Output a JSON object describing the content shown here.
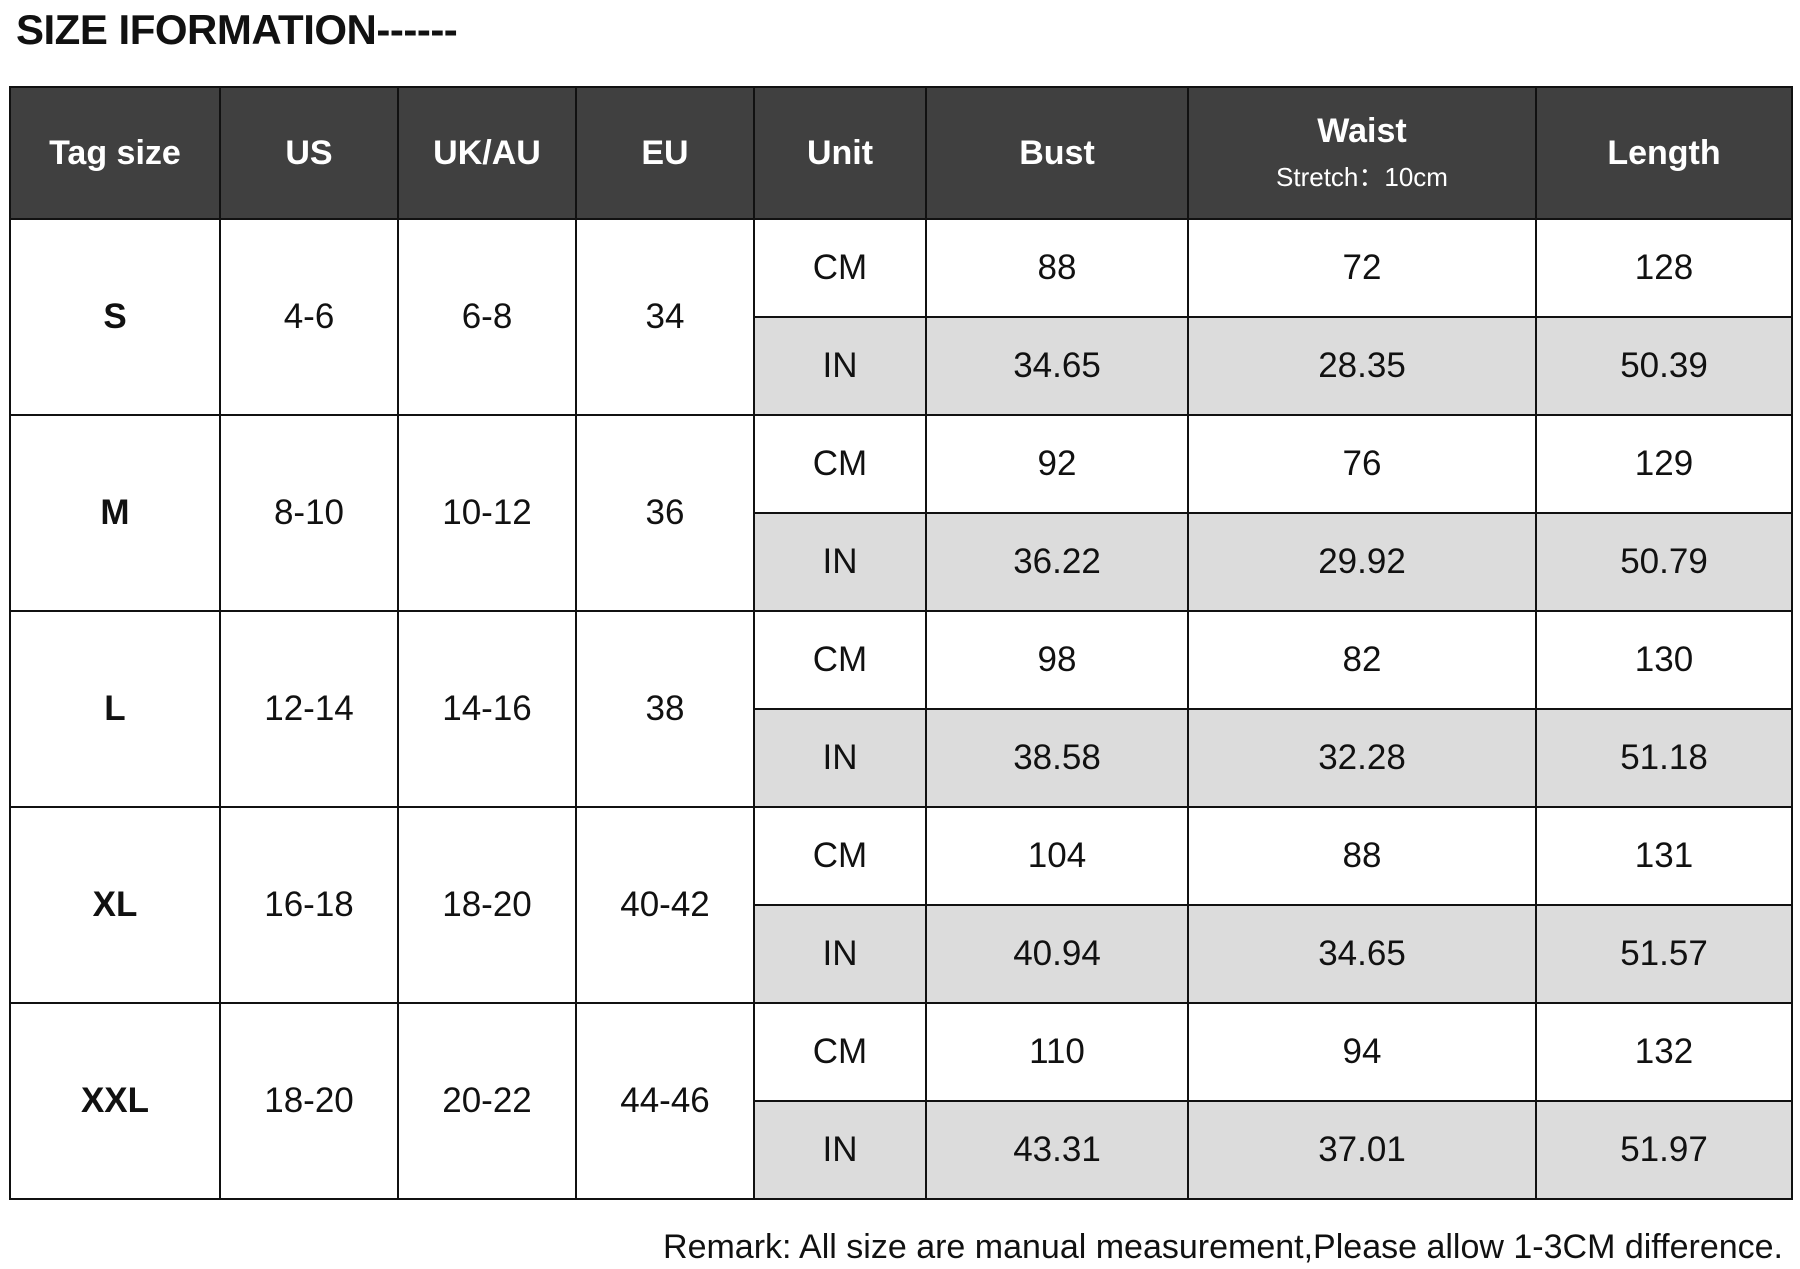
{
  "title": "SIZE IFORMATION------",
  "table": {
    "columns": [
      "Tag size",
      "US",
      "UK/AU",
      "EU",
      "Unit",
      "Bust",
      "Waist",
      "Length"
    ],
    "waist_note": "Stretch：10cm",
    "rows": [
      {
        "tag": "S",
        "us": "4-6",
        "uk_au": "6-8",
        "eu": "34",
        "cm": {
          "unit": "CM",
          "bust": "88",
          "waist": "72",
          "length": "128"
        },
        "in": {
          "unit": "IN",
          "bust": "34.65",
          "waist": "28.35",
          "length": "50.39"
        }
      },
      {
        "tag": "M",
        "us": "8-10",
        "uk_au": "10-12",
        "eu": "36",
        "cm": {
          "unit": "CM",
          "bust": "92",
          "waist": "76",
          "length": "129"
        },
        "in": {
          "unit": "IN",
          "bust": "36.22",
          "waist": "29.92",
          "length": "50.79"
        }
      },
      {
        "tag": "L",
        "us": "12-14",
        "uk_au": "14-16",
        "eu": "38",
        "cm": {
          "unit": "CM",
          "bust": "98",
          "waist": "82",
          "length": "130"
        },
        "in": {
          "unit": "IN",
          "bust": "38.58",
          "waist": "32.28",
          "length": "51.18"
        }
      },
      {
        "tag": "XL",
        "us": "16-18",
        "uk_au": "18-20",
        "eu": "40-42",
        "cm": {
          "unit": "CM",
          "bust": "104",
          "waist": "88",
          "length": "131"
        },
        "in": {
          "unit": "IN",
          "bust": "40.94",
          "waist": "34.65",
          "length": "51.57"
        }
      },
      {
        "tag": "XXL",
        "us": "18-20",
        "uk_au": "20-22",
        "eu": "44-46",
        "cm": {
          "unit": "CM",
          "bust": "110",
          "waist": "94",
          "length": "132"
        },
        "in": {
          "unit": "IN",
          "bust": "43.31",
          "waist": "37.01",
          "length": "51.97"
        }
      }
    ]
  },
  "remark": "Remark: All size are manual measurement,Please allow 1-3CM difference."
}
